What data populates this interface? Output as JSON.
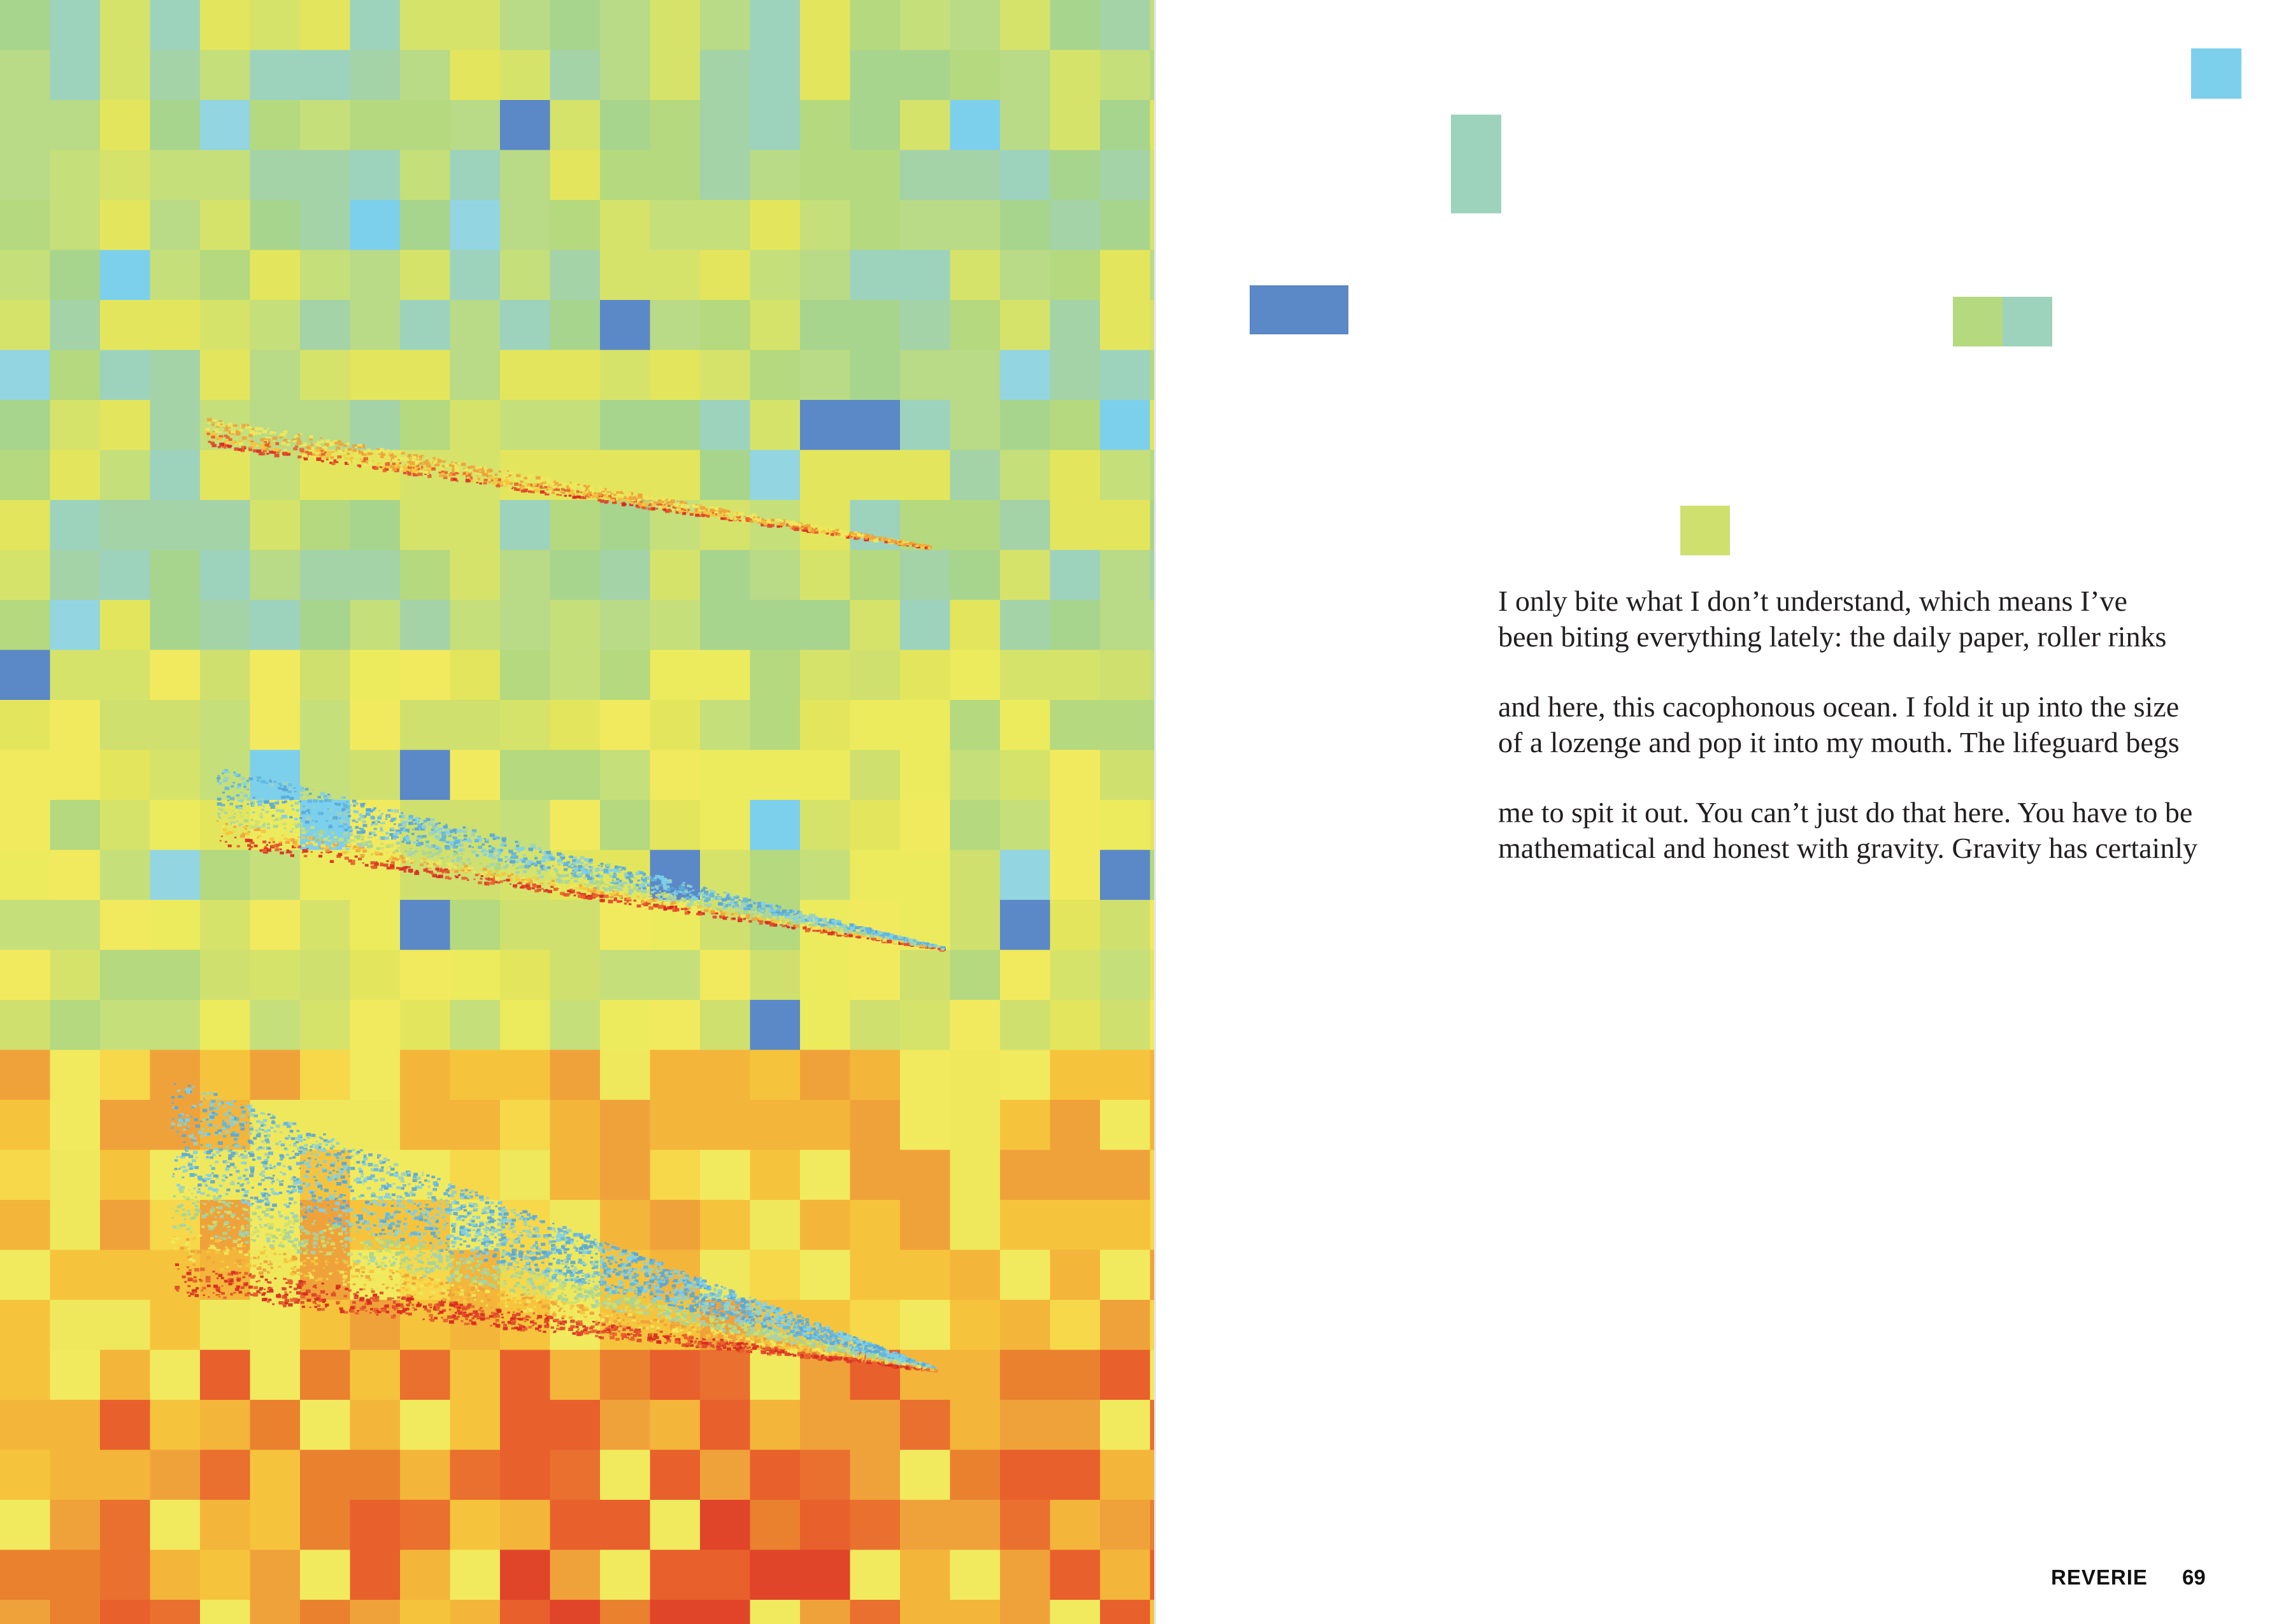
{
  "page": {
    "poem": {
      "stanzas": [
        [
          "I only bite what I don’t understand, which means I’ve",
          "been biting everything lately: the daily paper, roller rinks"
        ],
        [
          "and here, this cacophonous ocean. I fold it up into the size",
          "of a lozenge and pop it into my mouth. The lifeguard begs"
        ],
        [
          "me to spit it out. You can’t just do that here. You have to be",
          "mathematical and honest with gravity. Gravity has certainly"
        ]
      ]
    },
    "footer": {
      "magazine": "REVERIE",
      "page_number": "69"
    }
  },
  "palette": {
    "blue": "#5b88c6",
    "sky": "#7dd0ec",
    "teal": "#9dd3bd",
    "sage": "#a8d58d",
    "lime": "#cfe06f",
    "yellow": "#efe85c",
    "gold": "#f6c43c",
    "orange": "#f0a23a",
    "deep_orange": "#e9702e",
    "red": "#e0452a"
  }
}
